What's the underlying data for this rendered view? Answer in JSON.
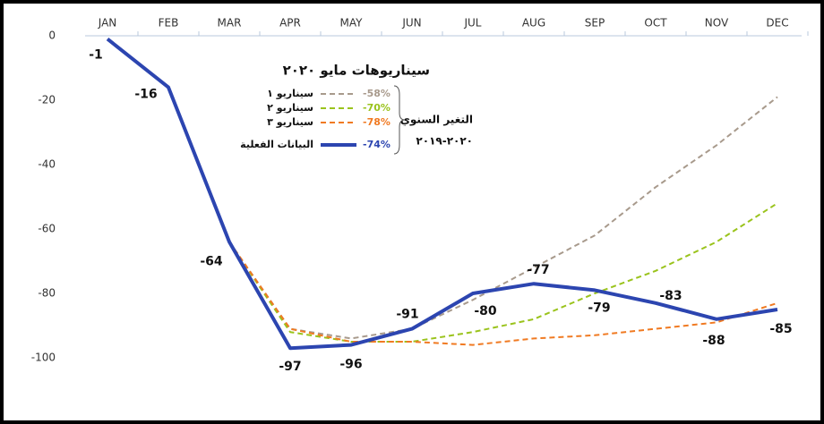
{
  "chart_data": {
    "type": "line",
    "legend_title": "سيناريوهات مايو ٢٠٢٠",
    "legend_note": "التغير السنوي",
    "legend_period": "٢٠٢٠-٢٠١٩",
    "categories": [
      "JAN",
      "FEB",
      "MAR",
      "APR",
      "MAY",
      "JUN",
      "JUL",
      "AUG",
      "SEP",
      "OCT",
      "NOV",
      "DEC"
    ],
    "ylim": [
      0,
      -100
    ],
    "yticks": [
      0,
      -20,
      -40,
      -60,
      -80,
      -100
    ],
    "series": [
      {
        "name": "سيناريو ١",
        "change": "-58%",
        "color": "#a89a8c",
        "dashed": true,
        "values": [
          null,
          null,
          -64,
          -91,
          -94,
          -91,
          -82,
          -72,
          -62,
          -47,
          -34,
          -19
        ]
      },
      {
        "name": "سيناريو ٢",
        "change": "-70%",
        "color": "#9ac31c",
        "dashed": true,
        "values": [
          null,
          null,
          -64,
          -92,
          -95,
          -95,
          -92,
          -88,
          -80,
          -73,
          -64,
          -52
        ]
      },
      {
        "name": "سيناريو ٣",
        "change": "-78%",
        "color": "#f07a22",
        "dashed": true,
        "values": [
          null,
          null,
          -64,
          -91,
          -95,
          -95,
          -96,
          -94,
          -93,
          -91,
          -89,
          -83
        ]
      },
      {
        "name": "البيانات الفعلية",
        "change": "-74%",
        "color": "#2c45b0",
        "dashed": false,
        "data_labels": true,
        "values": [
          -1,
          -16,
          -64,
          -97,
          -96,
          -91,
          -80,
          -77,
          -79,
          -83,
          -88,
          -85
        ]
      }
    ]
  }
}
